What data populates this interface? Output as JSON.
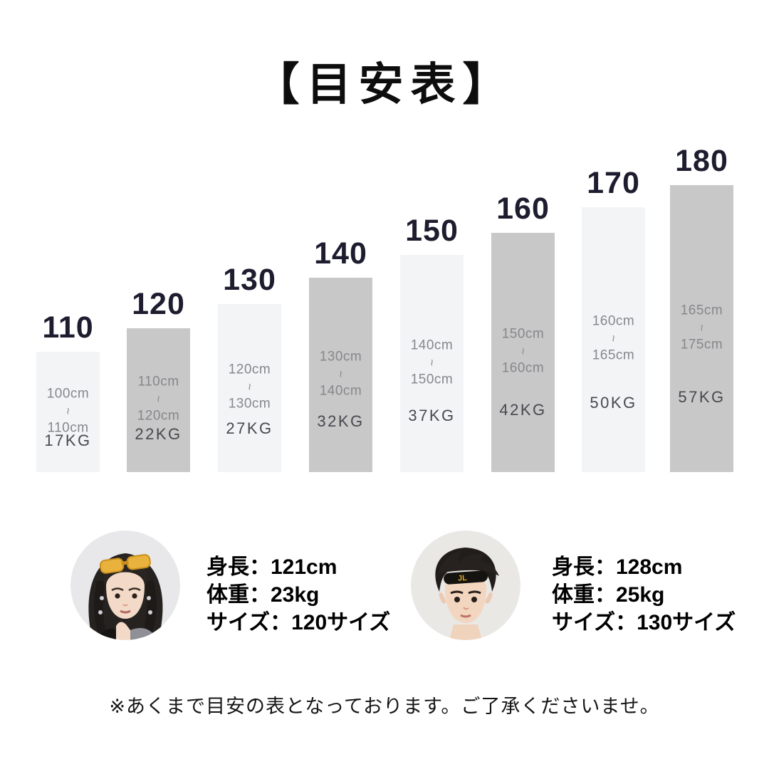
{
  "title": "【目安表】",
  "colors": {
    "bar_light": "#f3f4f6",
    "bar_dark": "#c8c8c8",
    "size_label": "#1d1d2f",
    "range_text": "#87878d",
    "weight_text": "#48484f"
  },
  "chart_data": {
    "type": "bar",
    "title": "目安表",
    "categories": [
      "110",
      "120",
      "130",
      "140",
      "150",
      "160",
      "170",
      "180"
    ],
    "tilde": "~",
    "legend": "none",
    "grid": false,
    "bars": [
      {
        "size": "110",
        "range_from": "100cm",
        "range_to": "110cm",
        "weight": "17KG",
        "shade": "light"
      },
      {
        "size": "120",
        "range_from": "110cm",
        "range_to": "120cm",
        "weight": "22KG",
        "shade": "dark"
      },
      {
        "size": "130",
        "range_from": "120cm",
        "range_to": "130cm",
        "weight": "27KG",
        "shade": "light"
      },
      {
        "size": "140",
        "range_from": "130cm",
        "range_to": "140cm",
        "weight": "32KG",
        "shade": "dark"
      },
      {
        "size": "150",
        "range_from": "140cm",
        "range_to": "150cm",
        "weight": "37KG",
        "shade": "light"
      },
      {
        "size": "160",
        "range_from": "150cm",
        "range_to": "160cm",
        "weight": "42KG",
        "shade": "dark"
      },
      {
        "size": "170",
        "range_from": "160cm",
        "range_to": "165cm",
        "weight": "50KG",
        "shade": "light"
      },
      {
        "size": "180",
        "range_from": "165cm",
        "range_to": "175cm",
        "weight": "57KG",
        "shade": "dark"
      }
    ]
  },
  "models": [
    {
      "photo": "girl-model-photo",
      "height_label": "身長：121cm",
      "weight_label": "体重：23kg",
      "size_label": "サイズ：120サイズ"
    },
    {
      "photo": "boy-model-photo",
      "height_label": "身長：128cm",
      "weight_label": "体重：25kg",
      "size_label": "サイズ：130サイズ"
    }
  ],
  "note": "※あくまで目安の表となっております。ご了承くださいませ。"
}
